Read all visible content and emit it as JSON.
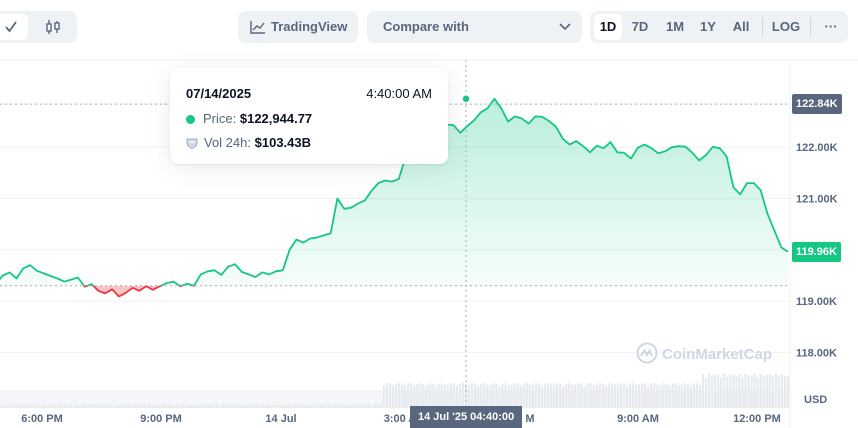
{
  "toolbar": {
    "chart_mode_icons": [
      "check-icon",
      "candlestick-icon"
    ],
    "tradingview_label": "TradingView",
    "compare_label": "Compare with",
    "timeframes": [
      "1D",
      "7D",
      "1M",
      "1Y",
      "All"
    ],
    "active_timeframe": "1D",
    "log_label": "LOG",
    "more_label": "···"
  },
  "tooltip": {
    "date": "07/14/2025",
    "time": "4:40:00 AM",
    "price_label": "Price:",
    "price_value": "$122,944.77",
    "vol_label": "Vol 24h:",
    "vol_value": "$103.43B"
  },
  "crosshair_label": "14 Jul '25 04:40:00",
  "price_tags": {
    "hover": "122.84K",
    "current": "119.96K"
  },
  "colors": {
    "up": "#16c784",
    "down": "#ea3943",
    "hover_tag": "#58667e",
    "current_tag": "#16c784"
  },
  "watermark": "CoinMarketCap",
  "chart_data": {
    "type": "area",
    "title": "",
    "xlabel": "",
    "ylabel": "USD",
    "x_tick_labels": [
      "6:00 PM",
      "9:00 PM",
      "14 Jul",
      "3:00 A",
      "",
      "M",
      "9:00 AM",
      "12:00 PM"
    ],
    "y_tick_labels": [
      "122.00K",
      "121.00K",
      "120.00K",
      "119.00K",
      "118.00K"
    ],
    "y_ticks": [
      122000,
      121000,
      120000,
      119000,
      118000
    ],
    "ylim": [
      117150,
      123700
    ],
    "baseline": 119300,
    "grid": true,
    "series": [
      {
        "values": [
          119340,
          119500,
          119560,
          119440,
          119640,
          119700,
          119590,
          119540,
          119490,
          119440,
          119380,
          119420,
          119460,
          119280,
          119330,
          119200,
          119150,
          119230,
          119090,
          119160,
          119260,
          119200,
          119290,
          119220,
          119290,
          119350,
          119380,
          119290,
          119340,
          119300,
          119520,
          119580,
          119600,
          119510,
          119670,
          119720,
          119570,
          119520,
          119470,
          119560,
          119520,
          119580,
          119600,
          120000,
          120200,
          120140,
          120220,
          120240,
          120280,
          120320,
          121000,
          120800,
          120820,
          120900,
          120960,
          121150,
          121300,
          121350,
          121330,
          121380,
          121820,
          122460,
          122590,
          122560,
          122700,
          122590,
          122440,
          122430,
          122280,
          122410,
          122520,
          122680,
          122760,
          122944.77,
          122760,
          122500,
          122600,
          122560,
          122460,
          122600,
          122590,
          122510,
          122400,
          122170,
          122050,
          122120,
          122020,
          121900,
          122030,
          121980,
          122100,
          121900,
          121890,
          121780,
          121990,
          122050,
          121980,
          121880,
          121920,
          122000,
          122020,
          122010,
          121890,
          121740,
          121850,
          122010,
          121980,
          121820,
          121220,
          121080,
          121300,
          121300,
          121160,
          120700,
          120380,
          120050,
          119960
        ]
      }
    ],
    "volume": [
      0,
      0,
      0,
      0,
      0,
      0,
      0,
      0,
      0,
      0,
      0,
      0,
      0,
      0,
      0,
      0,
      0,
      0,
      0,
      0,
      0,
      0,
      0,
      0,
      0,
      0,
      0,
      0,
      0,
      0,
      0,
      0,
      0,
      0,
      0,
      0,
      0,
      0,
      0,
      0,
      0,
      0,
      0,
      0,
      0,
      0,
      0,
      0,
      0,
      0,
      0,
      0,
      0,
      0,
      0,
      0,
      0,
      0,
      0,
      0,
      0,
      0,
      0,
      0,
      0,
      0,
      0,
      0,
      0,
      0,
      0,
      0,
      0,
      0,
      0,
      0,
      0,
      0,
      0,
      0,
      0,
      0,
      0,
      0,
      0,
      0,
      0,
      0,
      0,
      0,
      0,
      0,
      0,
      0,
      0,
      0,
      0,
      0,
      0,
      0,
      0,
      0,
      0,
      0,
      0,
      0,
      0,
      0,
      0,
      0,
      0,
      0,
      0,
      0,
      0,
      0,
      0
    ]
  }
}
